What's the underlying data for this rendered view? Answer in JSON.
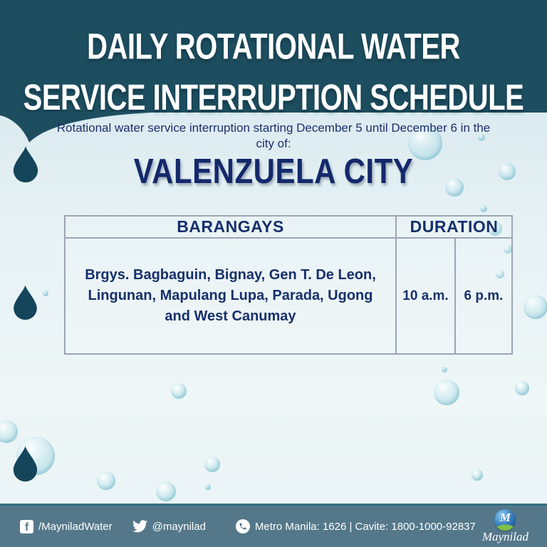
{
  "header": {
    "title": "DAILY ROTATIONAL WATER\nSERVICE INTERRUPTION SCHEDULE"
  },
  "announcement": {
    "intro": "Rotational water service interruption starting December 5 until December 6 in the\ncity of:",
    "city": "VALENZUELA CITY"
  },
  "schedule_table": {
    "headers": {
      "barangays": "BARANGAYS",
      "duration": "DURATION"
    },
    "rows": [
      {
        "barangays": "Brgys. Bagbaguin, Bignay, Gen T. De Leon,\nLingunan, Mapulang Lupa, Parada, Ugong\nand West Canumay",
        "start": "10 a.m.",
        "end": "6 p.m."
      }
    ]
  },
  "footer": {
    "facebook_handle": "/MayniladWater",
    "twitter_handle": "@maynilad",
    "hotline": "Metro Manila: 1626 | Cavite: 1800-1000-92837",
    "brand": "Maynilad"
  },
  "icons": {
    "facebook_glyph": "f",
    "globe_glyph": "M"
  },
  "colors": {
    "header_teal": "#1d4e60",
    "droplet_teal": "#15455b",
    "navy_text": "#16306b",
    "footer_blue": "#54788a",
    "table_border": "#9aa5b8",
    "logo_green": "#7dc143"
  }
}
